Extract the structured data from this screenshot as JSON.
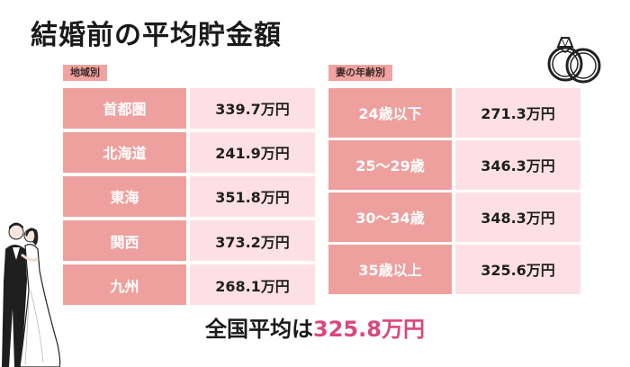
{
  "title": "結婚前の平均貯金額",
  "chart_data": [
    {
      "type": "table",
      "group_label": "地域別",
      "categories": [
        "首都圏",
        "北海道",
        "東海",
        "関西",
        "九州"
      ],
      "value_labels": [
        "339.7万円",
        "241.9万円",
        "351.8万円",
        "373.2万円",
        "268.1万円"
      ],
      "values": [
        339.7,
        241.9,
        351.8,
        373.2,
        268.1
      ],
      "unit": "万円"
    },
    {
      "type": "table",
      "group_label": "妻の年齢別",
      "categories": [
        "24歳以下",
        "25〜29歳",
        "30〜34歳",
        "35歳以上"
      ],
      "value_labels": [
        "271.3万円",
        "346.3万円",
        "348.3万円",
        "325.6万円"
      ],
      "values": [
        271.3,
        346.3,
        348.3,
        325.6
      ],
      "unit": "万円"
    }
  ],
  "summary": {
    "prefix": "全国平均は",
    "value": "325.8万円"
  },
  "colors": {
    "label_bg": "#eea09e",
    "value_bg": "#fde0e5",
    "tag_bg": "#f0a3a0",
    "accent": "#d9477f"
  },
  "icons": [
    "wedding-rings-icon",
    "wedding-couple-illustration"
  ]
}
